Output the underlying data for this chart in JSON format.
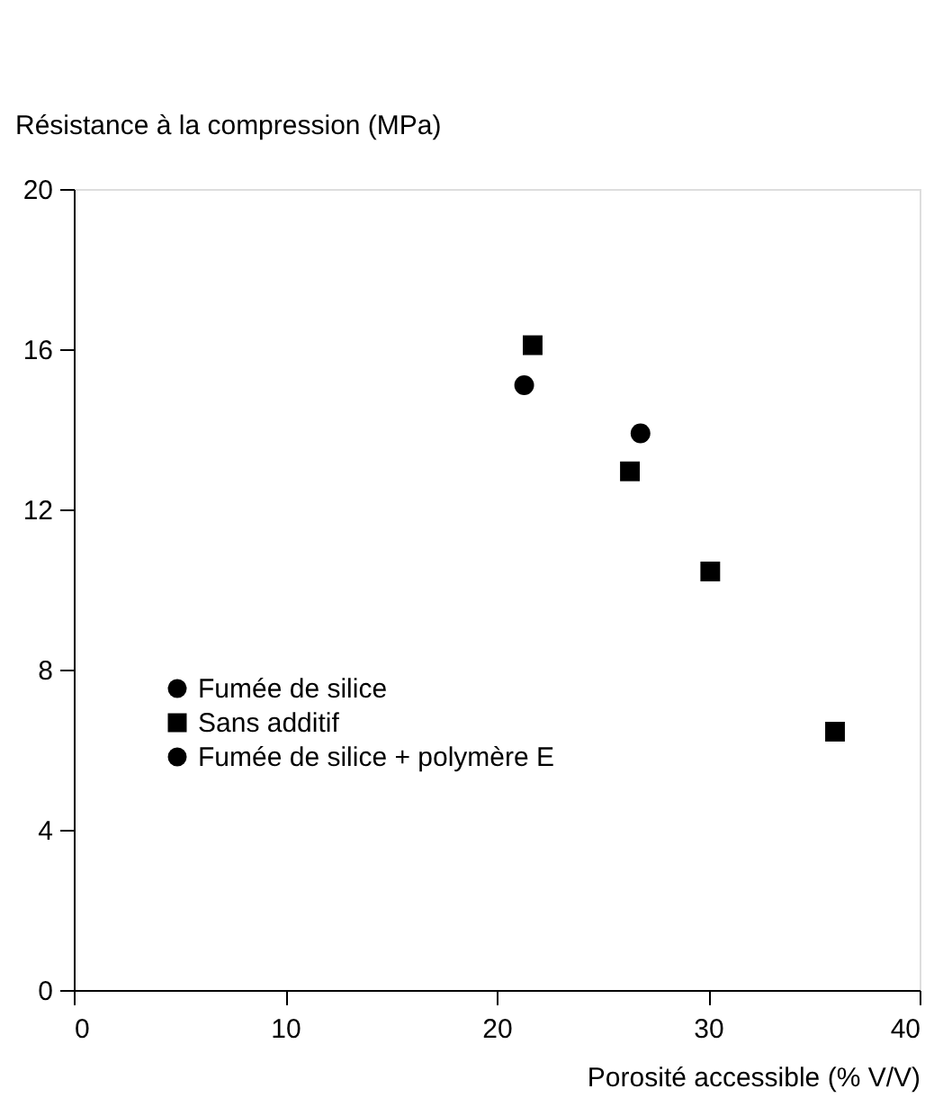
{
  "chart_data": {
    "type": "scatter",
    "xlabel": "Porosité accessible (% V/V)",
    "ylabel": "Résistance à la compression (MPa)",
    "xlim": [
      0,
      40
    ],
    "xticks": [
      0,
      10,
      20,
      30,
      40
    ],
    "ylim": [
      0,
      20
    ],
    "yticks": [
      0,
      4,
      8,
      12,
      16,
      20
    ],
    "grid": false,
    "legend": "bottom left",
    "series": [
      {
        "name": "Fumée de silice",
        "color": "#000000",
        "marker": "circle",
        "x": [
          21.3
        ],
        "values": [
          15.1
        ]
      },
      {
        "name": "Sans additif",
        "color": "#000000",
        "marker": "square",
        "x": [
          21.7,
          26.3,
          30.1,
          36.0
        ],
        "values": [
          16.1,
          12.95,
          10.45,
          6.45
        ]
      },
      {
        "name": "Fumée de silice + polymère E",
        "color": "#000000",
        "marker": "circle",
        "x": [
          26.8
        ],
        "values": [
          13.9
        ]
      }
    ]
  }
}
